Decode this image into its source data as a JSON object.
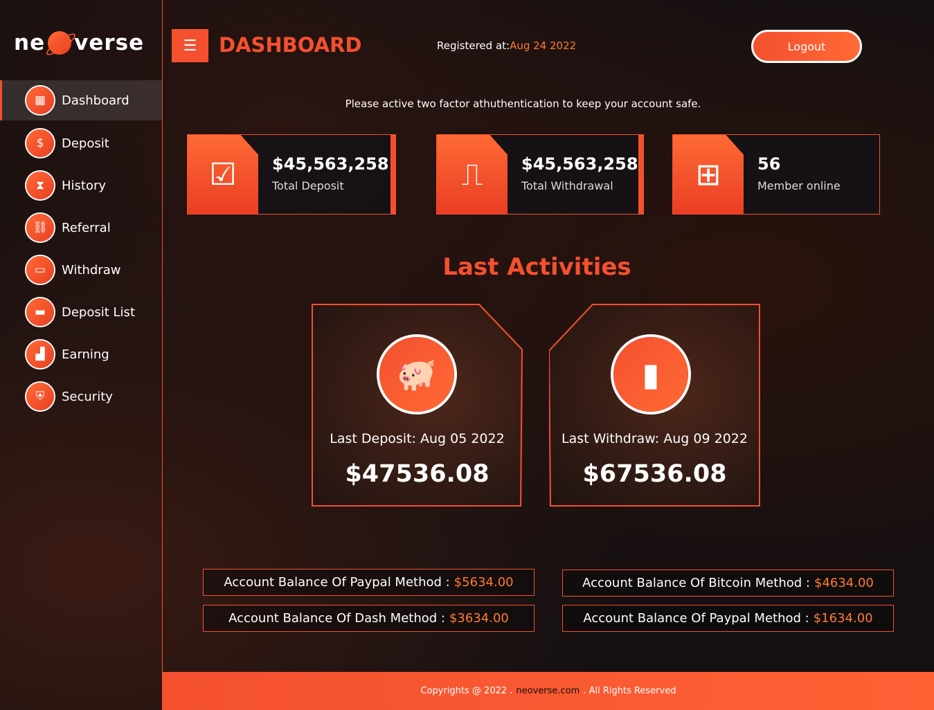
{
  "brand": {
    "logo_text_left": "ne",
    "logo_text_right": "verse"
  },
  "sidebar": {
    "items": [
      {
        "label": "Dashboard",
        "icon": "grid-icon",
        "active": true
      },
      {
        "label": "Deposit",
        "icon": "money-bag-icon"
      },
      {
        "label": "History",
        "icon": "history-icon"
      },
      {
        "label": "Referral",
        "icon": "link-icon"
      },
      {
        "label": "Withdraw",
        "icon": "atm-icon"
      },
      {
        "label": "Deposit List",
        "icon": "wallet-icon"
      },
      {
        "label": "Earning",
        "icon": "bar-chart-icon"
      },
      {
        "label": "Security",
        "icon": "shield-icon"
      }
    ]
  },
  "header": {
    "title": "DASHBOARD",
    "registered_label": "Registered at:",
    "registered_date": "Aug 24 2022",
    "logout": "Logout"
  },
  "notice": "Please active two factor athuthentication to keep your account safe.",
  "stats": [
    {
      "value": "$45,563,258",
      "label": "Total Deposit",
      "icon": "deposit-check-icon"
    },
    {
      "value": "$45,563,258",
      "label": "Total Withdrawal",
      "icon": "atm-withdraw-icon"
    },
    {
      "value": "56",
      "label": "Member online",
      "icon": "members-screen-icon"
    }
  ],
  "activities": {
    "title": "Last Activities",
    "items": [
      {
        "label": "Last Deposit: Aug 05 2022",
        "value": "$47536.08",
        "icon": "piggy-bank-icon"
      },
      {
        "label": "Last Withdraw: Aug 09 2022",
        "value": "$67536.08",
        "icon": "wallet-icon"
      }
    ]
  },
  "balances": [
    {
      "label": "Account Balance Of Paypal Method :",
      "value": "$5634.00"
    },
    {
      "label": "Account Balance Of Bitcoin Method :",
      "value": "$4634.00"
    },
    {
      "label": "Account Balance Of Dash Method :",
      "value": "$3634.00"
    },
    {
      "label": "Account Balance Of Paypal Method :",
      "value": "$1634.00"
    }
  ],
  "footer": {
    "left": "Copyrights @ 2022 .",
    "site": "neoverse.com",
    "right": ". All Rights Reserved"
  },
  "colors": {
    "accent": "#f4502f",
    "highlight": "#ff7a30"
  }
}
